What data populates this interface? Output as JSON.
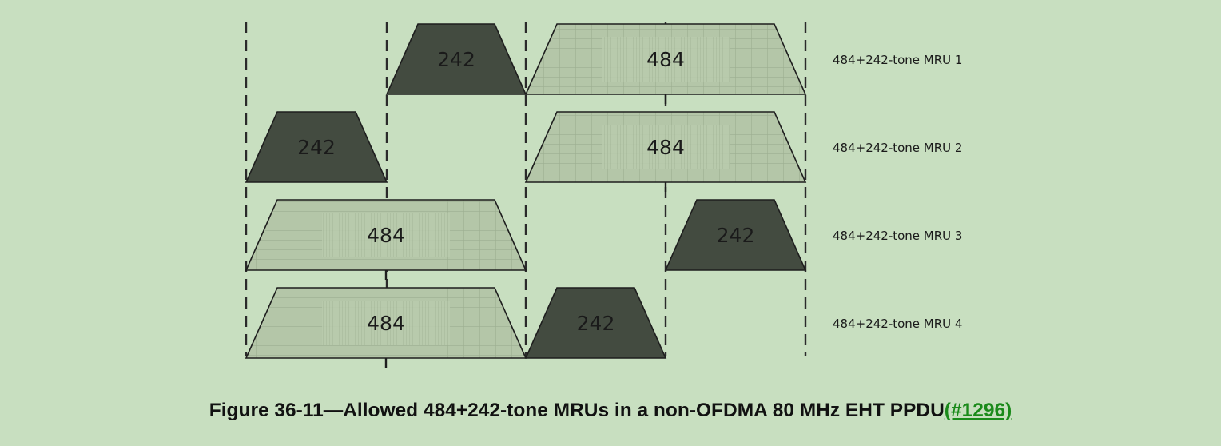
{
  "ru_small_label": "242",
  "ru_large_label": "484",
  "rows": [
    {
      "mru_label": "484+242-tone MRU 1",
      "units": [
        {
          "size": "242",
          "slot": 1
        },
        {
          "size": "484",
          "slot": 2
        }
      ]
    },
    {
      "mru_label": "484+242-tone MRU 2",
      "units": [
        {
          "size": "242",
          "slot": 0
        },
        {
          "size": "484",
          "slot": 2
        }
      ]
    },
    {
      "mru_label": "484+242-tone MRU 3",
      "units": [
        {
          "size": "484",
          "slot": 0
        },
        {
          "size": "242",
          "slot": 3
        }
      ]
    },
    {
      "mru_label": "484+242-tone MRU 4",
      "units": [
        {
          "size": "484",
          "slot": 0
        },
        {
          "size": "242",
          "slot": 2
        }
      ]
    }
  ],
  "caption": {
    "text": "Figure 36-11—Allowed 484+242-tone MRUs in a non-OFDMA 80 MHz EHT PPDU",
    "link": "(#1296)"
  },
  "colors": {
    "background": "#c8dfc0",
    "ru242_fill": "#434b40",
    "ru484_fill": "#b4c6a8",
    "ru484_grid": "#9aab8f",
    "outline": "#1e1e1e",
    "link": "#1a8a1a"
  }
}
